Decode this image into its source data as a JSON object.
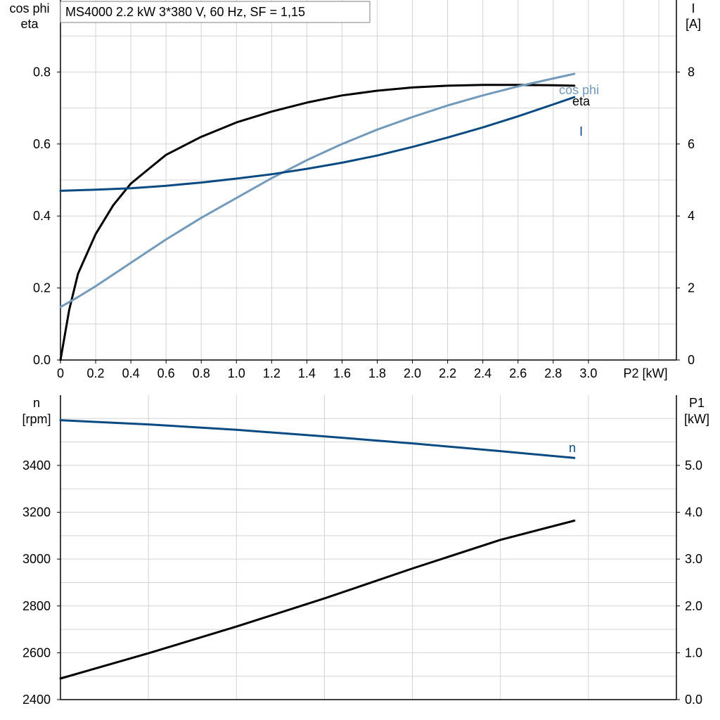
{
  "chart_title": "MS4000   2.2 kW   3*380 V, 60 Hz, SF = 1,15",
  "colors": {
    "eta": "#000000",
    "cos_phi": "#7399bb",
    "current": "#0a4a82",
    "speed": "#0a4a82",
    "p1": "#000000",
    "grid": "#d3d3d3"
  },
  "chart_data": [
    {
      "type": "line",
      "xlabel": "P2 [kW]",
      "x_ticks": [
        "0",
        "0.2",
        "0.4",
        "0.6",
        "0.8",
        "1.0",
        "1.2",
        "1.4",
        "1.6",
        "1.8",
        "2.0",
        "2.2",
        "2.4",
        "2.6",
        "2.8",
        "3.0"
      ],
      "xlim": [
        0,
        3.5
      ],
      "ylabel_left": [
        "cos phi",
        "eta"
      ],
      "ylim_left": [
        0,
        1.0
      ],
      "y_ticks_left": [
        "0.0",
        "0.2",
        "0.4",
        "0.6",
        "0.8"
      ],
      "ylabel_right": [
        "I",
        "[A]"
      ],
      "ylim_right": [
        0,
        10
      ],
      "y_ticks_right": [
        "0",
        "2",
        "4",
        "6",
        "8"
      ],
      "grid": true,
      "series": [
        {
          "name": "eta",
          "axis": "left",
          "x": [
            0,
            0.05,
            0.1,
            0.2,
            0.3,
            0.4,
            0.5,
            0.6,
            0.8,
            1.0,
            1.2,
            1.4,
            1.6,
            1.8,
            2.0,
            2.2,
            2.4,
            2.6,
            2.8,
            2.92
          ],
          "y": [
            0.0,
            0.14,
            0.24,
            0.35,
            0.43,
            0.49,
            0.53,
            0.57,
            0.62,
            0.66,
            0.69,
            0.715,
            0.735,
            0.748,
            0.757,
            0.762,
            0.764,
            0.764,
            0.763,
            0.762
          ]
        },
        {
          "name": "cos phi",
          "axis": "left",
          "x": [
            0,
            0.1,
            0.2,
            0.4,
            0.6,
            0.8,
            1.0,
            1.2,
            1.4,
            1.6,
            1.8,
            2.0,
            2.2,
            2.4,
            2.6,
            2.8,
            2.92
          ],
          "y": [
            0.147,
            0.175,
            0.205,
            0.27,
            0.335,
            0.395,
            0.45,
            0.505,
            0.555,
            0.6,
            0.64,
            0.675,
            0.707,
            0.735,
            0.76,
            0.782,
            0.795
          ]
        },
        {
          "name": "I",
          "axis": "right",
          "x": [
            0,
            0.2,
            0.4,
            0.6,
            0.8,
            1.0,
            1.2,
            1.4,
            1.6,
            1.8,
            2.0,
            2.2,
            2.4,
            2.6,
            2.8,
            2.92
          ],
          "y": [
            4.7,
            4.73,
            4.77,
            4.84,
            4.93,
            5.04,
            5.16,
            5.31,
            5.48,
            5.68,
            5.92,
            6.18,
            6.46,
            6.77,
            7.1,
            7.3
          ]
        }
      ]
    },
    {
      "type": "line",
      "xlim": [
        0,
        3.5
      ],
      "ylabel_left": [
        "n",
        "[rpm]"
      ],
      "ylim_left": [
        2400,
        3700
      ],
      "y_ticks_left": [
        "2400",
        "2600",
        "2800",
        "3000",
        "3200",
        "3400"
      ],
      "ylabel_right": [
        "P1",
        "[kW]"
      ],
      "ylim_right": [
        0.0,
        6.5
      ],
      "y_ticks_right": [
        "0.0",
        "1.0",
        "2.0",
        "3.0",
        "4.0",
        "5.0"
      ],
      "grid": true,
      "series": [
        {
          "name": "n",
          "axis": "left",
          "x": [
            0,
            0.5,
            1.0,
            1.5,
            2.0,
            2.5,
            2.92
          ],
          "y": [
            3593,
            3575,
            3552,
            3524,
            3494,
            3461,
            3432
          ]
        },
        {
          "name": "",
          "axis": "right",
          "x": [
            0,
            0.5,
            1.0,
            1.5,
            2.0,
            2.5,
            2.92
          ],
          "y": [
            0.45,
            0.99,
            1.56,
            2.16,
            2.8,
            3.41,
            3.82
          ]
        }
      ]
    }
  ]
}
